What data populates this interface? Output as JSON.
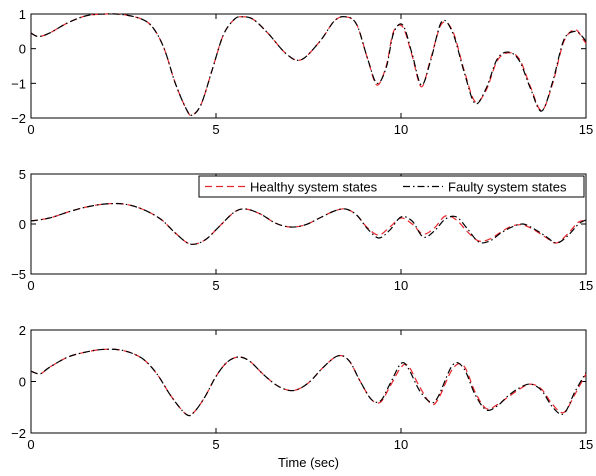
{
  "chart_data": [
    {
      "type": "line",
      "title": "",
      "xlabel": "",
      "ylabel": "",
      "xlim": [
        0,
        15
      ],
      "ylim": [
        -2,
        1
      ],
      "xticks": [
        "0",
        "5",
        "10",
        "15"
      ],
      "yticks": [
        "1",
        "0",
        "−1",
        "−2"
      ],
      "legend": null,
      "series": [
        {
          "color": "#e8262c",
          "dash": "dashed",
          "x": [
            0,
            0.2,
            0.5,
            1.0,
            1.5,
            2.0,
            2.5,
            3.0,
            3.3,
            3.6,
            3.9,
            4.2,
            4.35,
            4.6,
            4.9,
            5.2,
            5.5,
            5.7,
            6.0,
            6.4,
            6.9,
            7.3,
            7.8,
            8.2,
            8.5,
            8.8,
            9.1,
            9.35,
            9.6,
            9.8,
            10.05,
            10.3,
            10.55,
            10.8,
            11.1,
            11.4,
            11.7,
            12.0,
            12.3,
            12.6,
            12.9,
            13.2,
            13.5,
            13.8,
            14.1,
            14.4,
            14.7,
            14.9,
            15
          ],
          "y": [
            0.45,
            0.35,
            0.45,
            0.75,
            0.95,
            1.0,
            0.98,
            0.85,
            0.6,
            0.0,
            -1.0,
            -1.75,
            -1.92,
            -1.6,
            -0.6,
            0.4,
            0.85,
            0.92,
            0.85,
            0.45,
            -0.15,
            -0.32,
            0.2,
            0.8,
            0.92,
            0.7,
            -0.3,
            -1.05,
            -0.5,
            0.5,
            0.62,
            -0.2,
            -1.1,
            -0.3,
            0.72,
            0.5,
            -0.6,
            -1.52,
            -1.2,
            -0.35,
            -0.12,
            -0.3,
            -1.1,
            -1.78,
            -1.0,
            0.2,
            0.55,
            0.3,
            0.15
          ]
        },
        {
          "color": "#000000",
          "dash": "dashdot",
          "x": [
            0,
            0.2,
            0.5,
            1.0,
            1.5,
            2.0,
            2.5,
            3.0,
            3.3,
            3.6,
            3.9,
            4.2,
            4.35,
            4.6,
            4.9,
            5.2,
            5.5,
            5.7,
            6.0,
            6.4,
            6.9,
            7.3,
            7.8,
            8.2,
            8.5,
            8.8,
            9.1,
            9.35,
            9.6,
            9.8,
            10.05,
            10.3,
            10.55,
            10.8,
            11.1,
            11.4,
            11.7,
            12.0,
            12.3,
            12.6,
            12.9,
            13.2,
            13.5,
            13.8,
            14.1,
            14.4,
            14.7,
            14.9,
            15
          ],
          "y": [
            0.45,
            0.35,
            0.45,
            0.75,
            0.95,
            1.0,
            0.98,
            0.85,
            0.6,
            0.0,
            -1.0,
            -1.75,
            -1.92,
            -1.6,
            -0.6,
            0.4,
            0.85,
            0.92,
            0.85,
            0.45,
            -0.15,
            -0.32,
            0.2,
            0.8,
            0.92,
            0.7,
            -0.3,
            -1.0,
            -0.55,
            0.45,
            0.68,
            -0.15,
            -1.05,
            -0.35,
            0.78,
            0.45,
            -0.65,
            -1.58,
            -1.15,
            -0.3,
            -0.1,
            -0.35,
            -1.15,
            -1.8,
            -0.95,
            0.25,
            0.5,
            0.35,
            0.2
          ]
        }
      ]
    },
    {
      "type": "line",
      "title": "",
      "xlabel": "",
      "ylabel": "",
      "xlim": [
        0,
        15
      ],
      "ylim": [
        -5,
        5
      ],
      "xticks": [
        "0",
        "5",
        "10",
        "15"
      ],
      "yticks": [
        "5",
        "0",
        "−5"
      ],
      "legend": "top-right",
      "series": [
        {
          "name": "Healthy system states",
          "color": "#e8262c",
          "dash": "dashed",
          "x": [
            0,
            0.5,
            1.0,
            1.5,
            2.0,
            2.5,
            3.0,
            3.5,
            3.9,
            4.3,
            4.7,
            5.1,
            5.5,
            5.8,
            6.2,
            6.6,
            7.0,
            7.4,
            7.8,
            8.2,
            8.5,
            8.8,
            9.1,
            9.4,
            9.7,
            10.0,
            10.3,
            10.6,
            10.9,
            11.2,
            11.5,
            11.8,
            12.1,
            12.4,
            12.7,
            13.0,
            13.3,
            13.6,
            13.9,
            14.2,
            14.5,
            14.8,
            15
          ],
          "y": [
            0.3,
            0.6,
            1.2,
            1.7,
            2.0,
            2.0,
            1.5,
            0.5,
            -0.9,
            -2.0,
            -1.6,
            -0.2,
            1.2,
            1.5,
            1.0,
            0.1,
            -0.3,
            -0.1,
            0.6,
            1.3,
            1.5,
            0.9,
            -0.4,
            -1.1,
            -0.3,
            0.6,
            0.0,
            -1.0,
            -0.4,
            0.8,
            0.4,
            -0.8,
            -1.7,
            -1.5,
            -0.8,
            -0.2,
            -0.1,
            -0.6,
            -1.3,
            -1.9,
            -1.0,
            0.2,
            0.3
          ]
        },
        {
          "name": "Faulty system states",
          "color": "#000000",
          "dash": "dashdot",
          "x": [
            0,
            0.5,
            1.0,
            1.5,
            2.0,
            2.5,
            3.0,
            3.5,
            3.9,
            4.3,
            4.7,
            5.1,
            5.5,
            5.8,
            6.2,
            6.6,
            7.0,
            7.4,
            7.8,
            8.2,
            8.5,
            8.8,
            9.1,
            9.4,
            9.7,
            10.0,
            10.3,
            10.6,
            10.9,
            11.2,
            11.5,
            11.8,
            12.1,
            12.4,
            12.7,
            13.0,
            13.3,
            13.6,
            13.9,
            14.2,
            14.5,
            14.8,
            15
          ],
          "y": [
            0.3,
            0.6,
            1.2,
            1.7,
            2.0,
            2.0,
            1.5,
            0.5,
            -0.9,
            -2.0,
            -1.6,
            -0.2,
            1.2,
            1.5,
            1.0,
            0.1,
            -0.3,
            -0.1,
            0.6,
            1.3,
            1.5,
            0.9,
            -0.5,
            -1.4,
            -0.6,
            0.7,
            0.3,
            -1.3,
            -0.7,
            0.5,
            0.7,
            -0.5,
            -1.8,
            -1.7,
            -0.9,
            -0.3,
            0.0,
            -0.5,
            -1.2,
            -1.9,
            -1.2,
            0.0,
            0.4
          ]
        }
      ]
    },
    {
      "type": "line",
      "title": "",
      "xlabel": "Time (sec)",
      "ylabel": "",
      "xlim": [
        0,
        15
      ],
      "ylim": [
        -2,
        2
      ],
      "xticks": [
        "0",
        "5",
        "10",
        "15"
      ],
      "yticks": [
        "2",
        "0",
        "−2"
      ],
      "legend": null,
      "series": [
        {
          "color": "#e8262c",
          "dash": "dashed",
          "x": [
            0,
            0.25,
            0.5,
            1.0,
            1.5,
            2.0,
            2.5,
            3.0,
            3.4,
            3.8,
            4.2,
            4.4,
            4.7,
            5.0,
            5.3,
            5.6,
            5.9,
            6.3,
            6.7,
            7.1,
            7.5,
            7.9,
            8.3,
            8.6,
            8.9,
            9.2,
            9.45,
            9.7,
            10.0,
            10.2,
            10.5,
            10.8,
            11.0,
            11.4,
            11.7,
            12.0,
            12.3,
            12.6,
            12.9,
            13.2,
            13.5,
            13.8,
            14.1,
            14.4,
            14.7,
            15
          ],
          "y": [
            0.4,
            0.3,
            0.55,
            0.95,
            1.15,
            1.25,
            1.2,
            0.9,
            0.3,
            -0.6,
            -1.28,
            -1.2,
            -0.6,
            0.2,
            0.75,
            0.95,
            0.8,
            0.25,
            -0.2,
            -0.35,
            -0.05,
            0.55,
            1.0,
            0.8,
            0.0,
            -0.7,
            -0.8,
            -0.2,
            0.55,
            0.6,
            -0.2,
            -0.85,
            -0.7,
            0.5,
            0.6,
            -0.4,
            -1.05,
            -0.9,
            -0.6,
            -0.3,
            -0.1,
            -0.3,
            -0.9,
            -1.2,
            -0.5,
            0.3
          ]
        },
        {
          "color": "#000000",
          "dash": "dashdot",
          "x": [
            0,
            0.25,
            0.5,
            1.0,
            1.5,
            2.0,
            2.5,
            3.0,
            3.4,
            3.8,
            4.2,
            4.4,
            4.7,
            5.0,
            5.3,
            5.6,
            5.9,
            6.3,
            6.7,
            7.1,
            7.5,
            7.9,
            8.3,
            8.6,
            8.9,
            9.2,
            9.45,
            9.7,
            10.0,
            10.2,
            10.5,
            10.8,
            11.0,
            11.4,
            11.7,
            12.0,
            12.3,
            12.6,
            12.9,
            13.2,
            13.5,
            13.8,
            14.1,
            14.4,
            14.7,
            15
          ],
          "y": [
            0.4,
            0.3,
            0.55,
            0.95,
            1.15,
            1.25,
            1.2,
            0.9,
            0.3,
            -0.6,
            -1.28,
            -1.2,
            -0.6,
            0.2,
            0.75,
            0.95,
            0.8,
            0.25,
            -0.2,
            -0.35,
            -0.05,
            0.55,
            1.0,
            0.8,
            0.0,
            -0.7,
            -0.75,
            -0.1,
            0.7,
            0.5,
            -0.35,
            -0.8,
            -0.6,
            0.65,
            0.5,
            -0.5,
            -1.1,
            -0.95,
            -0.55,
            -0.25,
            -0.1,
            -0.35,
            -1.0,
            -1.25,
            -0.4,
            0.35
          ]
        }
      ]
    }
  ]
}
